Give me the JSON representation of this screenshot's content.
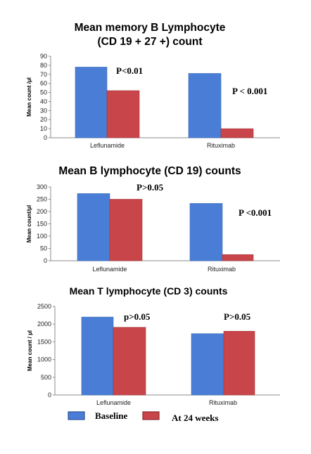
{
  "chart_data": [
    {
      "type": "bar",
      "title": [
        "Mean memory B Lymphocyte",
        "(CD 19 + 27 +) count"
      ],
      "ylabel": "Mean count /µl",
      "categories": [
        "Leflunamide",
        "Rituximab"
      ],
      "series": [
        {
          "name": "Baseline",
          "values": [
            78,
            71
          ]
        },
        {
          "name": "At 24 weeks",
          "values": [
            52,
            10
          ]
        }
      ],
      "ylim": [
        0,
        90
      ],
      "yticks": [
        0,
        10,
        20,
        30,
        40,
        50,
        60,
        70,
        80,
        90
      ],
      "annotations": [
        "P<0.01",
        "P < 0.001"
      ]
    },
    {
      "type": "bar",
      "title": [
        "Mean B lymphocyte (CD 19) counts"
      ],
      "ylabel": "Mean count/µl",
      "categories": [
        "Leflunamide",
        "Rituximab"
      ],
      "series": [
        {
          "name": "Baseline",
          "values": [
            273,
            233
          ]
        },
        {
          "name": "At 24 weeks",
          "values": [
            250,
            25
          ]
        }
      ],
      "ylim": [
        0,
        300
      ],
      "yticks": [
        0,
        50,
        100,
        150,
        200,
        250,
        300
      ],
      "annotations": [
        "P>0.05",
        "P <0.001"
      ]
    },
    {
      "type": "bar",
      "title": [
        "Mean T lymphocyte (CD 3) counts"
      ],
      "ylabel": "Mean count / µl",
      "categories": [
        "Leflunamide",
        "Rituximab"
      ],
      "series": [
        {
          "name": "Baseline",
          "values": [
            2200,
            1730
          ]
        },
        {
          "name": "At 24 weeks",
          "values": [
            1910,
            1800
          ]
        }
      ],
      "ylim": [
        0,
        2500
      ],
      "yticks": [
        0,
        500,
        1000,
        1500,
        2000,
        2500
      ],
      "annotations": [
        "p>0.05",
        "P>0.05"
      ]
    }
  ],
  "legend": {
    "items": [
      {
        "label": "Baseline",
        "color": "#4a7ed6"
      },
      {
        "label": "At 24 weeks",
        "color": "#c8454a"
      }
    ]
  },
  "colors": {
    "baseline": "#4a7ed6",
    "week24": "#c8454a",
    "axis": "#8c8c8c"
  }
}
